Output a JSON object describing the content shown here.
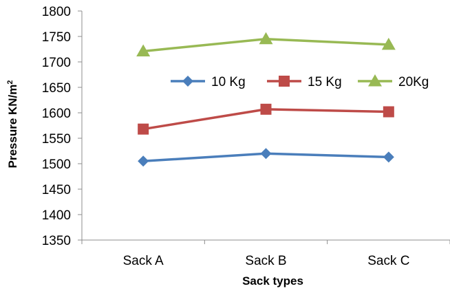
{
  "chart_data": {
    "type": "line",
    "categories": [
      "Sack A",
      "Sack B",
      "Sack C"
    ],
    "series": [
      {
        "name": "10 Kg",
        "values": [
          1505,
          1520,
          1513
        ],
        "color": "#4a7ebb",
        "marker": "diamond"
      },
      {
        "name": "15 Kg",
        "values": [
          1568,
          1607,
          1602
        ],
        "color": "#be4b48",
        "marker": "square"
      },
      {
        "name": "20Kg",
        "values": [
          1721,
          1745,
          1734
        ],
        "color": "#98b954",
        "marker": "triangle"
      }
    ],
    "xlabel": "Sack types",
    "ylabel": {
      "text": "Pressure KN/m",
      "superscript": "2"
    },
    "ylim": [
      1350,
      1800
    ],
    "yticks": [
      1350,
      1400,
      1450,
      1500,
      1550,
      1600,
      1650,
      1700,
      1750,
      1800
    ],
    "grid": false,
    "legend_position": "top-center"
  }
}
